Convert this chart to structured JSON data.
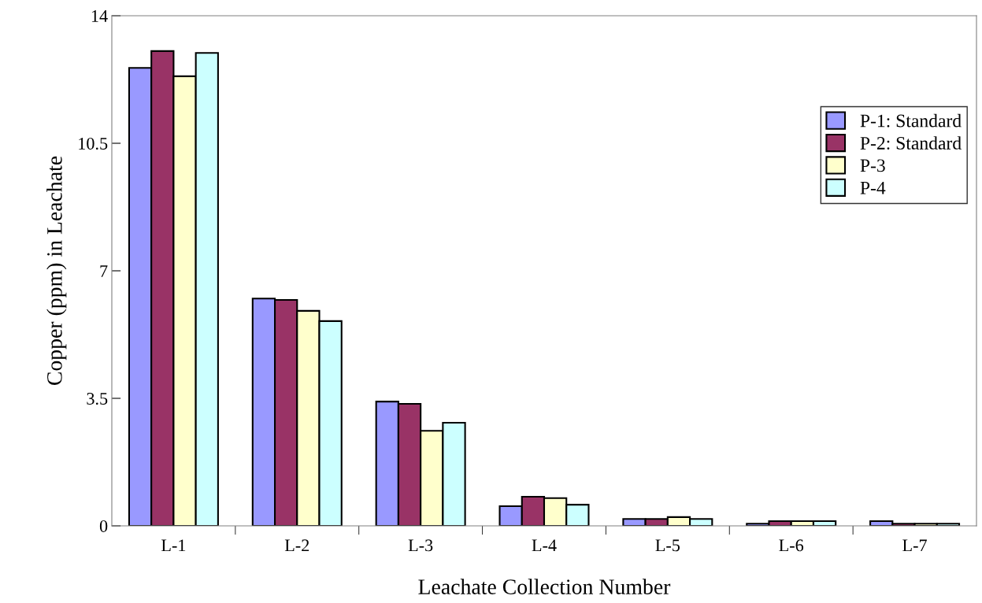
{
  "chart_data": {
    "type": "bar",
    "xlabel": "Leachate Collection Number",
    "ylabel": "Copper (ppm) in Leachate",
    "categories": [
      "L-1",
      "L-2",
      "L-3",
      "L-4",
      "L-5",
      "L-6",
      "L-7"
    ],
    "series": [
      {
        "name": "P-1: Standard",
        "color": "#9999ff",
        "values": [
          12.57,
          6.24,
          3.41,
          0.54,
          0.19,
          0.06,
          0.13
        ]
      },
      {
        "name": "P-2: Standard",
        "color": "#993366",
        "values": [
          13.03,
          6.2,
          3.35,
          0.8,
          0.19,
          0.13,
          0.06
        ]
      },
      {
        "name": "P-3",
        "color": "#ffffcc",
        "values": [
          12.34,
          5.9,
          2.61,
          0.76,
          0.24,
          0.13,
          0.06
        ]
      },
      {
        "name": "P-4",
        "color": "#ccffff",
        "values": [
          12.98,
          5.62,
          2.83,
          0.58,
          0.19,
          0.13,
          0.06
        ]
      }
    ],
    "ylim": [
      0,
      14
    ],
    "yticks": [
      0,
      3.5,
      7,
      10.5,
      14
    ],
    "grid": false,
    "legend": "top right"
  }
}
